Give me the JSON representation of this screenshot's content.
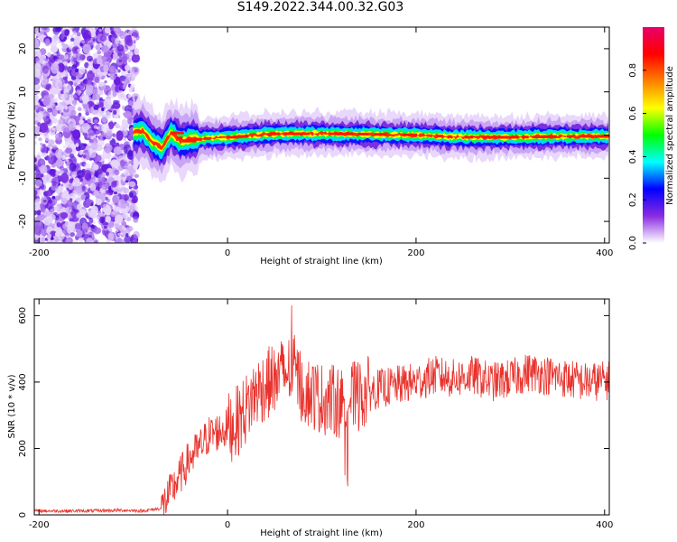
{
  "title": "S149.2022.344.00.32.G03",
  "chart_data": [
    {
      "type": "heatmap",
      "xlabel": "Height of straight line (km)",
      "ylabel": "Frequency (Hz)",
      "xlim": [
        -205,
        405
      ],
      "ylim": [
        -25,
        25
      ],
      "xticks": [
        "-200",
        "0",
        "200",
        "400"
      ],
      "yticks": [
        "-20",
        "-10",
        "0",
        "10",
        "20"
      ],
      "colorbar": {
        "label": "Normalized spectral amplitude",
        "range": [
          0,
          1
        ],
        "ticks": [
          "0.0",
          "0.2",
          "0.4",
          "0.6",
          "0.8"
        ],
        "colormap": [
          "#ffffff",
          "#8a2be2",
          "#0000ff",
          "#00ffff",
          "#00ff00",
          "#ffff00",
          "#ff8000",
          "#ff0000",
          "#e8006a"
        ]
      },
      "noise_region": [
        -205,
        -100
      ],
      "ridge": [
        {
          "x": -100,
          "f": 0.5
        },
        {
          "x": -90,
          "f": 1.0
        },
        {
          "x": -80,
          "f": -1.5
        },
        {
          "x": -70,
          "f": -3.0
        },
        {
          "x": -60,
          "f": 0.5
        },
        {
          "x": -50,
          "f": -1.5
        },
        {
          "x": -40,
          "f": -1.0
        },
        {
          "x": 0,
          "f": -0.5
        },
        {
          "x": 50,
          "f": 0.3
        },
        {
          "x": 100,
          "f": 0.3
        },
        {
          "x": 150,
          "f": 0.2
        },
        {
          "x": 200,
          "f": 0.0
        },
        {
          "x": 250,
          "f": -0.5
        },
        {
          "x": 300,
          "f": -0.5
        },
        {
          "x": 350,
          "f": -0.3
        },
        {
          "x": 405,
          "f": -0.3
        }
      ]
    },
    {
      "type": "line",
      "xlabel": "Height of straight line (km)",
      "ylabel": "SNR (10 * v/v)",
      "xlim": [
        -205,
        405
      ],
      "ylim": [
        0,
        650
      ],
      "xticks": [
        "-200",
        "0",
        "200",
        "400"
      ],
      "yticks": [
        "0",
        "200",
        "400",
        "600"
      ],
      "color": "#e8322c",
      "series": [
        {
          "values_envelope": [
            [
              -205,
              12
            ],
            [
              -150,
              12
            ],
            [
              -110,
              14
            ],
            [
              -90,
              12
            ],
            [
              -70,
              20
            ],
            [
              -60,
              70
            ],
            [
              -50,
              120
            ],
            [
              -40,
              170
            ],
            [
              -30,
              200
            ],
            [
              -20,
              240
            ],
            [
              0,
              260
            ],
            [
              10,
              280
            ],
            [
              20,
              320
            ],
            [
              30,
              370
            ],
            [
              40,
              390
            ],
            [
              55,
              420
            ],
            [
              70,
              440
            ],
            [
              80,
              380
            ],
            [
              100,
              350
            ],
            [
              120,
              340
            ],
            [
              140,
              360
            ],
            [
              160,
              380
            ],
            [
              180,
              390
            ],
            [
              200,
              400
            ],
            [
              220,
              420
            ],
            [
              240,
              410
            ],
            [
              260,
              420
            ],
            [
              280,
              400
            ],
            [
              300,
              410
            ],
            [
              320,
              430
            ],
            [
              340,
              420
            ],
            [
              360,
              410
            ],
            [
              380,
              400
            ],
            [
              405,
              405
            ]
          ]
        }
      ]
    }
  ]
}
